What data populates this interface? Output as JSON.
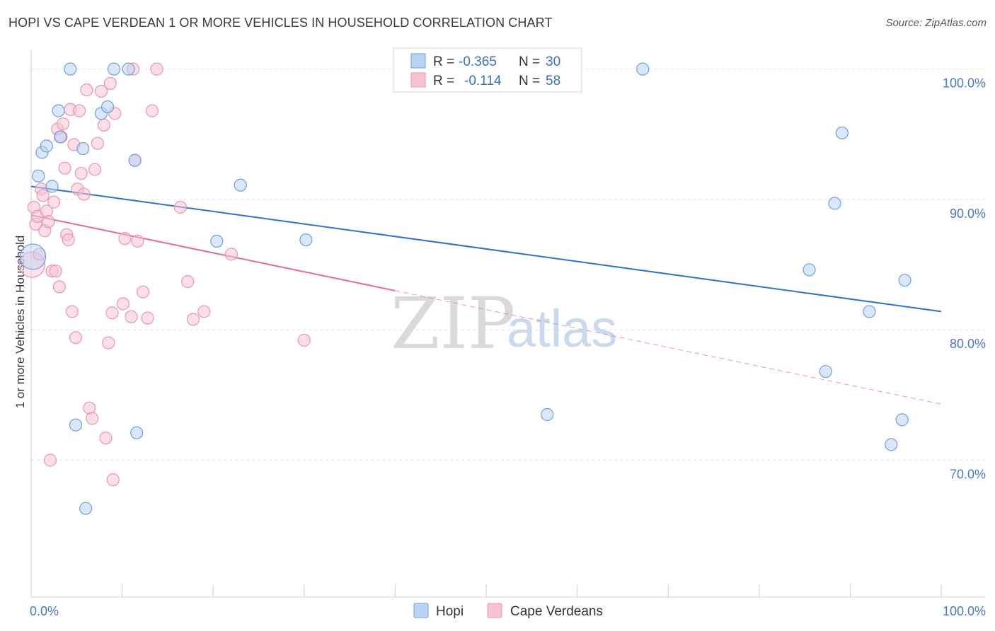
{
  "header": {
    "title": "HOPI VS CAPE VERDEAN 1 OR MORE VEHICLES IN HOUSEHOLD CORRELATION CHART",
    "source": "Source: ZipAtlas.com"
  },
  "legend": {
    "rows": [
      {
        "r_label": "R =",
        "r_value": "-0.365",
        "n_label": "N =",
        "n_value": "30"
      },
      {
        "r_label": "R =",
        "r_value": "-0.114",
        "n_label": "N =",
        "n_value": "58"
      }
    ]
  },
  "watermark": {
    "zip": "ZIP",
    "atlas": "atlas"
  },
  "colors": {
    "hopi_fill": "#b9d3f3",
    "hopi_stroke": "#6f9fdc",
    "hopi_line": "#2f6fcf",
    "cape_fill": "#f7c3d2",
    "cape_stroke": "#e897ae",
    "cape_line": "#e06c95",
    "grid": "#e3e3e3",
    "tick_text": "#4a78c2"
  },
  "chart_data": {
    "type": "scatter",
    "title": "HOPI VS CAPE VERDEAN 1 OR MORE VEHICLES IN HOUSEHOLD CORRELATION CHART",
    "xlabel": "",
    "ylabel": "1 or more Vehicles in Household",
    "xlim": [
      0,
      100
    ],
    "ylim": [
      59.5,
      101.5
    ],
    "x_tick_labels": [
      {
        "value": 0,
        "label": "0.0%"
      },
      {
        "value": 100,
        "label": "100.0%"
      }
    ],
    "y_tick_labels": [
      {
        "value": 100,
        "label": "100.0%"
      },
      {
        "value": 90,
        "label": "90.0%"
      },
      {
        "value": 80,
        "label": "80.0%"
      },
      {
        "value": 70,
        "label": "70.0%"
      }
    ],
    "grid": true,
    "legend_position": "top-center",
    "series": [
      {
        "name": "Hopi",
        "r": -0.365,
        "n": 30,
        "trend": {
          "x0": 0,
          "y0": 91.0,
          "x1": 100,
          "y1": 81.4
        },
        "points": [
          {
            "x": 0.2,
            "y": 85.6,
            "big": true
          },
          {
            "x": 0.8,
            "y": 91.8
          },
          {
            "x": 1.2,
            "y": 93.6
          },
          {
            "x": 1.7,
            "y": 94.1
          },
          {
            "x": 2.3,
            "y": 91.0
          },
          {
            "x": 3.0,
            "y": 96.8
          },
          {
            "x": 3.2,
            "y": 94.8
          },
          {
            "x": 4.3,
            "y": 100.0
          },
          {
            "x": 4.9,
            "y": 72.7
          },
          {
            "x": 5.7,
            "y": 93.9
          },
          {
            "x": 6.0,
            "y": 66.3
          },
          {
            "x": 7.7,
            "y": 96.6
          },
          {
            "x": 8.4,
            "y": 97.1
          },
          {
            "x": 9.1,
            "y": 100.0
          },
          {
            "x": 10.7,
            "y": 100.0
          },
          {
            "x": 11.4,
            "y": 93.0
          },
          {
            "x": 11.6,
            "y": 72.1
          },
          {
            "x": 20.4,
            "y": 86.8
          },
          {
            "x": 23.0,
            "y": 91.1
          },
          {
            "x": 30.2,
            "y": 86.9
          },
          {
            "x": 56.7,
            "y": 73.5
          },
          {
            "x": 67.2,
            "y": 100.0
          },
          {
            "x": 85.5,
            "y": 84.6
          },
          {
            "x": 87.3,
            "y": 76.8
          },
          {
            "x": 88.3,
            "y": 89.7
          },
          {
            "x": 89.1,
            "y": 95.1
          },
          {
            "x": 92.1,
            "y": 81.4
          },
          {
            "x": 94.5,
            "y": 71.2
          },
          {
            "x": 95.7,
            "y": 73.1
          },
          {
            "x": 96.0,
            "y": 83.8
          }
        ]
      },
      {
        "name": "Cape Verdeans",
        "r": -0.114,
        "n": 58,
        "trend": {
          "x0": 0,
          "y0": 88.8,
          "x1": 40,
          "y1": 83.0,
          "dash_x1": 100,
          "dash_y1": 74.3
        },
        "points": [
          {
            "x": 0.1,
            "y": 85.0,
            "big": true
          },
          {
            "x": 0.3,
            "y": 89.4
          },
          {
            "x": 0.5,
            "y": 88.1
          },
          {
            "x": 0.7,
            "y": 88.7
          },
          {
            "x": 0.9,
            "y": 85.8
          },
          {
            "x": 1.1,
            "y": 90.8
          },
          {
            "x": 1.3,
            "y": 90.3
          },
          {
            "x": 1.5,
            "y": 87.6
          },
          {
            "x": 1.7,
            "y": 89.1
          },
          {
            "x": 1.9,
            "y": 88.3
          },
          {
            "x": 2.1,
            "y": 70.0
          },
          {
            "x": 2.3,
            "y": 84.5
          },
          {
            "x": 2.5,
            "y": 89.8
          },
          {
            "x": 2.7,
            "y": 84.5
          },
          {
            "x": 2.9,
            "y": 95.4
          },
          {
            "x": 3.1,
            "y": 83.3
          },
          {
            "x": 3.3,
            "y": 94.8
          },
          {
            "x": 3.5,
            "y": 95.8
          },
          {
            "x": 3.7,
            "y": 92.4
          },
          {
            "x": 3.9,
            "y": 87.3
          },
          {
            "x": 4.1,
            "y": 86.9
          },
          {
            "x": 4.3,
            "y": 96.9
          },
          {
            "x": 4.5,
            "y": 81.4
          },
          {
            "x": 4.7,
            "y": 94.2
          },
          {
            "x": 4.9,
            "y": 79.4
          },
          {
            "x": 5.1,
            "y": 90.8
          },
          {
            "x": 5.3,
            "y": 96.8
          },
          {
            "x": 5.5,
            "y": 92.0
          },
          {
            "x": 5.8,
            "y": 90.4
          },
          {
            "x": 6.1,
            "y": 98.4
          },
          {
            "x": 6.4,
            "y": 74.0
          },
          {
            "x": 6.7,
            "y": 73.2
          },
          {
            "x": 7.0,
            "y": 92.3
          },
          {
            "x": 7.3,
            "y": 94.3
          },
          {
            "x": 7.7,
            "y": 98.3
          },
          {
            "x": 8.0,
            "y": 95.7
          },
          {
            "x": 8.2,
            "y": 71.7
          },
          {
            "x": 8.5,
            "y": 79.0
          },
          {
            "x": 8.7,
            "y": 98.9
          },
          {
            "x": 8.9,
            "y": 81.3
          },
          {
            "x": 9.2,
            "y": 96.6
          },
          {
            "x": 9.0,
            "y": 68.5
          },
          {
            "x": 10.1,
            "y": 82.0
          },
          {
            "x": 10.3,
            "y": 87.0
          },
          {
            "x": 11.2,
            "y": 100.0
          },
          {
            "x": 11.0,
            "y": 81.0
          },
          {
            "x": 11.4,
            "y": 93.0
          },
          {
            "x": 11.7,
            "y": 86.8
          },
          {
            "x": 12.3,
            "y": 82.9
          },
          {
            "x": 12.8,
            "y": 80.9
          },
          {
            "x": 13.3,
            "y": 96.8
          },
          {
            "x": 13.8,
            "y": 100.0
          },
          {
            "x": 16.4,
            "y": 89.4
          },
          {
            "x": 17.2,
            "y": 83.7
          },
          {
            "x": 17.8,
            "y": 80.8
          },
          {
            "x": 19.0,
            "y": 81.4
          },
          {
            "x": 22.0,
            "y": 85.8
          },
          {
            "x": 30.0,
            "y": 79.2
          }
        ]
      }
    ]
  }
}
